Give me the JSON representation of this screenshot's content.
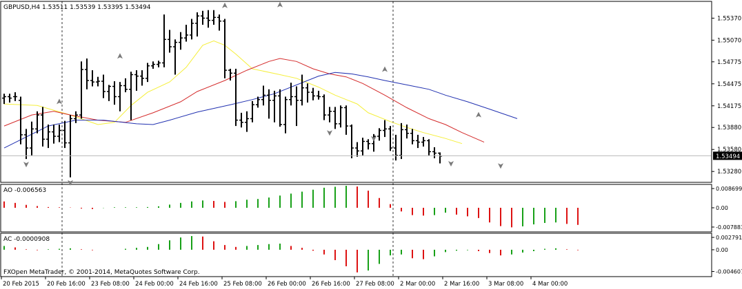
{
  "chart_data": [
    {
      "type": "candlestick",
      "subtype": "ohlc-bars",
      "title": "GBPUSD,H4  1.53511 1.53539 1.53395 1.53494",
      "symbol": "GBPUSD",
      "timeframe": "H4",
      "last_values": {
        "open": 1.53511,
        "high": 1.53539,
        "low": 1.53395,
        "close": 1.53494
      },
      "current_price_label": "1.53494",
      "ylim": [
        1.5316,
        1.5558
      ],
      "y_ticks": [
        "1.55370",
        "1.55070",
        "1.54775",
        "1.54475",
        "1.54175",
        "1.53880",
        "1.53580",
        "1.53280"
      ],
      "x_tick_labels": [
        "20 Feb 2015",
        "20 Feb 16:00",
        "23 Feb 08:00",
        "24 Feb 00:00",
        "24 Feb 16:00",
        "25 Feb 08:00",
        "26 Feb 00:00",
        "26 Feb 16:00",
        "27 Feb 08:00",
        "2 Mar 00:00",
        "2 Mar 16:00",
        "3 Mar 08:00",
        "4 Mar 00:00"
      ],
      "bars": [
        [
          1.5428,
          1.5434,
          1.542,
          1.543
        ],
        [
          1.543,
          1.5434,
          1.5422,
          1.5428
        ],
        [
          1.543,
          1.5436,
          1.5424,
          1.543
        ],
        [
          1.5425,
          1.543,
          1.5365,
          1.5378
        ],
        [
          1.5378,
          1.5386,
          1.5345,
          1.536
        ],
        [
          1.536,
          1.5396,
          1.535,
          1.5386
        ],
        [
          1.5386,
          1.541,
          1.538,
          1.5405
        ],
        [
          1.5405,
          1.5416,
          1.5362,
          1.5372
        ],
        [
          1.5372,
          1.5392,
          1.536,
          1.5382
        ],
        [
          1.5382,
          1.5392,
          1.5366,
          1.5376
        ],
        [
          1.5376,
          1.5392,
          1.5368,
          1.5384
        ],
        [
          1.5384,
          1.5397,
          1.536,
          1.5367
        ],
        [
          1.5367,
          1.5405,
          1.532,
          1.54
        ],
        [
          1.54,
          1.541,
          1.5394,
          1.5405
        ],
        [
          1.5405,
          1.5478,
          1.54,
          1.5467
        ],
        [
          1.5467,
          1.5482,
          1.544,
          1.5452
        ],
        [
          1.5452,
          1.5466,
          1.5444,
          1.545
        ],
        [
          1.545,
          1.5457,
          1.5444,
          1.5451
        ],
        [
          1.5451,
          1.546,
          1.5428,
          1.5437
        ],
        [
          1.5437,
          1.5446,
          1.5424,
          1.5444
        ],
        [
          1.5444,
          1.5451,
          1.5419,
          1.543
        ],
        [
          1.543,
          1.545,
          1.541,
          1.5445
        ],
        [
          1.5445,
          1.5455,
          1.5436,
          1.544
        ],
        [
          1.544,
          1.5464,
          1.5398,
          1.546
        ],
        [
          1.546,
          1.5466,
          1.5438,
          1.5458
        ],
        [
          1.5458,
          1.5466,
          1.5445,
          1.5455
        ],
        [
          1.5455,
          1.5476,
          1.545,
          1.5472
        ],
        [
          1.5472,
          1.5478,
          1.5468,
          1.5474
        ],
        [
          1.5474,
          1.5479,
          1.547,
          1.5476
        ],
        [
          1.5476,
          1.5542,
          1.547,
          1.5508
        ],
        [
          1.5508,
          1.5521,
          1.549,
          1.5498
        ],
        [
          1.5498,
          1.5508,
          1.546,
          1.5504
        ],
        [
          1.5504,
          1.5518,
          1.5494,
          1.551
        ],
        [
          1.551,
          1.5528,
          1.5505,
          1.5514
        ],
        [
          1.5514,
          1.5536,
          1.5508,
          1.553
        ],
        [
          1.553,
          1.5545,
          1.5512,
          1.554
        ],
        [
          1.554,
          1.5547,
          1.5528,
          1.5537
        ],
        [
          1.5537,
          1.5548,
          1.5524,
          1.5534
        ],
        [
          1.5534,
          1.5548,
          1.5528,
          1.5538
        ],
        [
          1.5538,
          1.5542,
          1.552,
          1.5533
        ],
        [
          1.5533,
          1.5536,
          1.5455,
          1.5466
        ],
        [
          1.5466,
          1.5468,
          1.5452,
          1.5462
        ],
        [
          1.5462,
          1.5468,
          1.539,
          1.5398
        ],
        [
          1.5398,
          1.5408,
          1.5388,
          1.5395
        ],
        [
          1.5395,
          1.541,
          1.5382,
          1.54
        ],
        [
          1.54,
          1.5424,
          1.5395,
          1.5419
        ],
        [
          1.5419,
          1.543,
          1.5415,
          1.5426
        ],
        [
          1.5426,
          1.5445,
          1.5418,
          1.5432
        ],
        [
          1.5432,
          1.544,
          1.54,
          1.5425
        ],
        [
          1.5425,
          1.5438,
          1.5395,
          1.5431
        ],
        [
          1.5431,
          1.544,
          1.5389,
          1.5392
        ],
        [
          1.5392,
          1.543,
          1.538,
          1.5426
        ],
        [
          1.5426,
          1.5449,
          1.5418,
          1.543
        ],
        [
          1.543,
          1.5444,
          1.539,
          1.5425
        ],
        [
          1.5425,
          1.546,
          1.5418,
          1.5442
        ],
        [
          1.5442,
          1.5448,
          1.5422,
          1.5436
        ],
        [
          1.5436,
          1.5442,
          1.5425,
          1.5431
        ],
        [
          1.5431,
          1.5438,
          1.5426,
          1.543
        ],
        [
          1.543,
          1.5433,
          1.5398,
          1.5405
        ],
        [
          1.5405,
          1.5416,
          1.5395,
          1.541
        ],
        [
          1.541,
          1.5416,
          1.5386,
          1.5393
        ],
        [
          1.5393,
          1.5418,
          1.5388,
          1.5415
        ],
        [
          1.5415,
          1.5418,
          1.5378,
          1.539
        ],
        [
          1.539,
          1.5392,
          1.5346,
          1.536
        ],
        [
          1.536,
          1.5368,
          1.5348,
          1.5356
        ],
        [
          1.5356,
          1.5374,
          1.535,
          1.5369
        ],
        [
          1.5369,
          1.5372,
          1.5358,
          1.5366
        ],
        [
          1.5366,
          1.5379,
          1.5355,
          1.5376
        ],
        [
          1.5376,
          1.5387,
          1.537,
          1.5384
        ],
        [
          1.5384,
          1.5398,
          1.5375,
          1.5386
        ],
        [
          1.5386,
          1.539,
          1.5356,
          1.536
        ],
        [
          1.536,
          1.5378,
          1.5343,
          1.535
        ],
        [
          1.535,
          1.5394,
          1.5345,
          1.5385
        ],
        [
          1.5385,
          1.5392,
          1.5373,
          1.538
        ],
        [
          1.538,
          1.5386,
          1.5365,
          1.537
        ],
        [
          1.537,
          1.5378,
          1.536,
          1.5368
        ],
        [
          1.5368,
          1.5375,
          1.5362,
          1.537
        ],
        [
          1.537,
          1.5372,
          1.535,
          1.5355
        ],
        [
          1.5355,
          1.5361,
          1.5346,
          1.5353
        ],
        [
          1.5353,
          1.5354,
          1.5339,
          1.5349
        ]
      ],
      "moving_averages": [
        {
          "color": "#f5ef3a",
          "values": [
            [
              0,
              1.542
            ],
            [
              6,
              1.5418
            ],
            [
              12,
              1.5405
            ],
            [
              17,
              1.5392
            ],
            [
              20,
              1.5395
            ],
            [
              23,
              1.5418
            ],
            [
              26,
              1.5436
            ],
            [
              30,
              1.545
            ],
            [
              33,
              1.547
            ],
            [
              36,
              1.55
            ],
            [
              38,
              1.5506
            ],
            [
              40,
              1.55
            ],
            [
              42,
              1.5488
            ],
            [
              45,
              1.5468
            ],
            [
              50,
              1.546
            ],
            [
              53,
              1.5455
            ],
            [
              57,
              1.5443
            ],
            [
              60,
              1.5432
            ],
            [
              64,
              1.542
            ],
            [
              66,
              1.5408
            ],
            [
              70,
              1.5396
            ],
            [
              73,
              1.5388
            ],
            [
              76,
              1.5381
            ],
            [
              80,
              1.5373
            ],
            [
              83,
              1.5366
            ]
          ]
        },
        {
          "color": "#d42a2a",
          "values": [
            [
              0,
              1.539
            ],
            [
              5,
              1.5405
            ],
            [
              9,
              1.541
            ],
            [
              12,
              1.5405
            ],
            [
              17,
              1.5398
            ],
            [
              22,
              1.5395
            ],
            [
              27,
              1.5408
            ],
            [
              32,
              1.5423
            ],
            [
              35,
              1.5437
            ],
            [
              40,
              1.5452
            ],
            [
              44,
              1.5466
            ],
            [
              48,
              1.5478
            ],
            [
              50,
              1.5482
            ],
            [
              53,
              1.5478
            ],
            [
              56,
              1.5468
            ],
            [
              59,
              1.5461
            ],
            [
              62,
              1.5457
            ],
            [
              65,
              1.5448
            ],
            [
              69,
              1.5432
            ],
            [
              73,
              1.5415
            ],
            [
              77,
              1.54
            ],
            [
              80,
              1.5392
            ],
            [
              83,
              1.5381
            ],
            [
              87,
              1.5368
            ]
          ]
        },
        {
          "color": "#2030b0",
          "values": [
            [
              0,
              1.536
            ],
            [
              4,
              1.5375
            ],
            [
              8,
              1.539
            ],
            [
              13,
              1.5398
            ],
            [
              18,
              1.5398
            ],
            [
              24,
              1.5393
            ],
            [
              27,
              1.5392
            ],
            [
              30,
              1.5398
            ],
            [
              35,
              1.5409
            ],
            [
              41,
              1.5419
            ],
            [
              45,
              1.5426
            ],
            [
              49,
              1.5434
            ],
            [
              53,
              1.5446
            ],
            [
              57,
              1.5458
            ],
            [
              60,
              1.5463
            ],
            [
              63,
              1.5461
            ],
            [
              66,
              1.5457
            ],
            [
              69,
              1.5452
            ],
            [
              73,
              1.5446
            ],
            [
              77,
              1.544
            ],
            [
              80,
              1.5432
            ],
            [
              84,
              1.5423
            ],
            [
              88,
              1.5413
            ],
            [
              93,
              1.54
            ]
          ]
        }
      ],
      "fractals": [
        {
          "type": "down",
          "bar": 4,
          "price": 1.5345
        },
        {
          "type": "down",
          "bar": 12,
          "price": 1.532
        },
        {
          "type": "up",
          "bar": 10,
          "price": 1.5416
        },
        {
          "type": "up",
          "bar": 21,
          "price": 1.5478
        },
        {
          "type": "up",
          "bar": 40,
          "price": 1.5547
        },
        {
          "type": "up",
          "bar": 50,
          "price": 1.5548
        },
        {
          "type": "down",
          "bar": 59,
          "price": 1.5388
        },
        {
          "type": "down",
          "bar": 67,
          "price": 1.538
        },
        {
          "type": "up",
          "bar": 69,
          "price": 1.546
        },
        {
          "type": "down",
          "bar": 81,
          "price": 1.5346
        },
        {
          "type": "up",
          "bar": 86,
          "price": 1.5398
        },
        {
          "type": "down",
          "bar": 90,
          "price": 1.5343
        }
      ],
      "period_separator_bars": [
        11,
        71
      ],
      "grid": false
    },
    {
      "type": "bar",
      "indicator": "Awesome Oscillator",
      "title": "AO -0.006563",
      "y_ticks": [
        "0.008699",
        "0.00",
        "-0.007883"
      ],
      "ylim": [
        -0.0093,
        0.009
      ],
      "up_color": "#17a017",
      "down_color": "#dd1111",
      "values": [
        0.0026,
        0.002,
        0.0012,
        0.0007,
        0.0003,
        0.0002,
        0.0001,
        -0.0003,
        -0.0005,
        -0.0001,
        0.0002,
        0.0002,
        0.0002,
        0.0003,
        0.0006,
        0.0013,
        0.002,
        0.0026,
        0.003,
        0.0028,
        0.0024,
        0.0027,
        0.0033,
        0.0036,
        0.0042,
        0.005,
        0.0058,
        0.0066,
        0.0074,
        0.0082,
        0.0086,
        0.009,
        0.0087,
        0.007,
        0.004,
        0.0015,
        -0.0015,
        -0.003,
        -0.0032,
        -0.003,
        -0.002,
        -0.0028,
        -0.0035,
        -0.0042,
        -0.006,
        -0.0075,
        -0.008,
        -0.0076,
        -0.0068,
        -0.0062,
        -0.006,
        -0.0066,
        -0.007
      ],
      "colors": [
        "down",
        "down",
        "down",
        "down",
        "down",
        "down",
        "down",
        "down",
        "down",
        "up",
        "up",
        "up",
        "up",
        "up",
        "up",
        "up",
        "up",
        "up",
        "up",
        "down",
        "down",
        "up",
        "up",
        "up",
        "up",
        "up",
        "up",
        "up",
        "up",
        "up",
        "up",
        "up",
        "down",
        "down",
        "down",
        "down",
        "down",
        "down",
        "down",
        "up",
        "up",
        "down",
        "down",
        "down",
        "down",
        "down",
        "down",
        "up",
        "up",
        "up",
        "up",
        "down",
        "down"
      ]
    },
    {
      "type": "bar",
      "indicator": "Accelerator Oscillator",
      "title": "AC -0.0000908",
      "y_ticks": [
        "0.002791",
        "0.00",
        "-0.004607"
      ],
      "ylim": [
        -0.0054,
        0.0032
      ],
      "up_color": "#17a017",
      "down_color": "#dd1111",
      "values": [
        0.0008,
        0.0005,
        0.0001,
        -0.0001,
        0.0001,
        0.0002,
        0.0003,
        0.0001,
        -0.0001,
        0.0,
        0.0,
        0.0002,
        0.0004,
        0.0006,
        0.0012,
        0.002,
        0.0026,
        0.0029,
        0.0028,
        0.0018,
        0.001,
        0.0006,
        0.0008,
        0.001,
        0.0012,
        0.0013,
        0.0008,
        0.0004,
        -0.0002,
        -0.001,
        -0.0022,
        -0.0035,
        -0.0048,
        -0.0044,
        -0.003,
        -0.0012,
        -0.001,
        -0.0018,
        -0.002,
        -0.0014,
        -0.0005,
        -0.0002,
        -0.0001,
        -0.0003,
        -0.0007,
        -0.0012,
        -0.001,
        -0.0006,
        -0.0003,
        0.0002,
        0.0003,
        0.0001,
        -0.0001
      ],
      "colors": [
        "up",
        "down",
        "down",
        "down",
        "up",
        "up",
        "up",
        "down",
        "down",
        "up",
        "up",
        "up",
        "up",
        "up",
        "up",
        "up",
        "up",
        "up",
        "down",
        "down",
        "down",
        "down",
        "up",
        "up",
        "up",
        "up",
        "down",
        "down",
        "down",
        "down",
        "down",
        "down",
        "down",
        "up",
        "up",
        "up",
        "up",
        "down",
        "down",
        "up",
        "up",
        "up",
        "up",
        "down",
        "down",
        "down",
        "up",
        "up",
        "up",
        "up",
        "up",
        "down",
        "down"
      ]
    }
  ],
  "footer": "FXOpen MetaTrader, © 2001-2014, MetaQuotes Software Corp."
}
